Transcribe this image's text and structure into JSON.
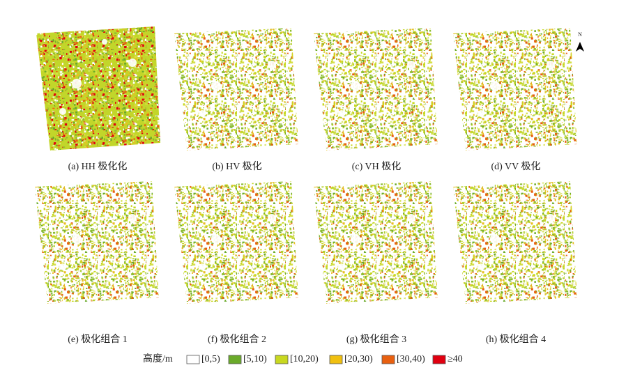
{
  "panels": [
    {
      "caption": "(a) HH 极化化"
    },
    {
      "caption": "(b) HV 极化"
    },
    {
      "caption": "(c) VH 极化"
    },
    {
      "caption": "(d) VV 极化"
    },
    {
      "caption": "(e) 极化组合 1"
    },
    {
      "caption": "(f) 极化组合 2"
    },
    {
      "caption": "(g) 极化组合 3"
    },
    {
      "caption": "(h) 极化组合 4"
    }
  ],
  "north": "N",
  "legend": {
    "title": "高度/m",
    "items": [
      {
        "label": "[0,5)",
        "color": "#ffffff"
      },
      {
        "label": "[5,10)",
        "color": "#6aaa2a"
      },
      {
        "label": "[10,20)",
        "color": "#c8d820"
      },
      {
        "label": "[20,30)",
        "color": "#f0c010"
      },
      {
        "label": "[30,40)",
        "color": "#e86010"
      },
      {
        "label": "≥40",
        "color": "#e00010"
      }
    ]
  }
}
